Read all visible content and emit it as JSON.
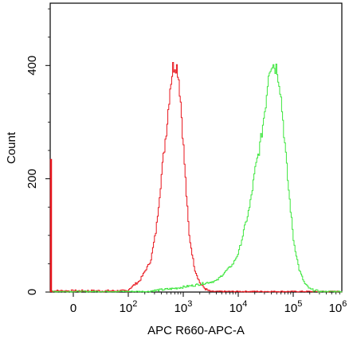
{
  "chart_data": {
    "type": "line",
    "subtype": "flow-cytometry-histogram",
    "xlabel": "APC R660-APC-A",
    "ylabel": "Count",
    "x_scale": "biexponential (log)",
    "x_ticks": [
      "0",
      "10^2",
      "10^3",
      "10^4",
      "10^5",
      "10^6"
    ],
    "x_tick_labels": [
      {
        "base": "0",
        "exp": ""
      },
      {
        "base": "10",
        "exp": "2"
      },
      {
        "base": "10",
        "exp": "3"
      },
      {
        "base": "10",
        "exp": "4"
      },
      {
        "base": "10",
        "exp": "5"
      },
      {
        "base": "10",
        "exp": "6"
      }
    ],
    "y_ticks": [
      0,
      200,
      400
    ],
    "ylim": [
      0,
      510
    ],
    "grid": false,
    "legend": "none",
    "series": [
      {
        "color": "#e8141c",
        "x_log10": [
          2.0,
          2.2,
          2.4,
          2.5,
          2.6,
          2.7,
          2.75,
          2.8,
          2.85,
          2.9,
          2.95,
          3.0,
          3.05,
          3.1,
          3.2,
          3.3,
          3.4,
          3.5
        ],
        "y": [
          5,
          20,
          55,
          110,
          210,
          300,
          360,
          395,
          405,
          390,
          330,
          250,
          170,
          100,
          40,
          15,
          5,
          0
        ]
      },
      {
        "color": "#3ce63c",
        "x_log10": [
          2.4,
          2.8,
          3.2,
          3.6,
          3.9,
          4.0,
          4.1,
          4.2,
          4.3,
          4.4,
          4.5,
          4.55,
          4.6,
          4.65,
          4.7,
          4.75,
          4.8,
          4.85,
          4.9,
          5.0,
          5.1,
          5.2,
          5.3,
          5.5
        ],
        "y": [
          2,
          6,
          12,
          20,
          50,
          70,
          110,
          150,
          215,
          265,
          340,
          395,
          405,
          400,
          395,
          365,
          310,
          250,
          190,
          90,
          40,
          15,
          5,
          0
        ]
      }
    ],
    "edge_spike": {
      "color": "#e8141c",
      "y": 235
    }
  }
}
